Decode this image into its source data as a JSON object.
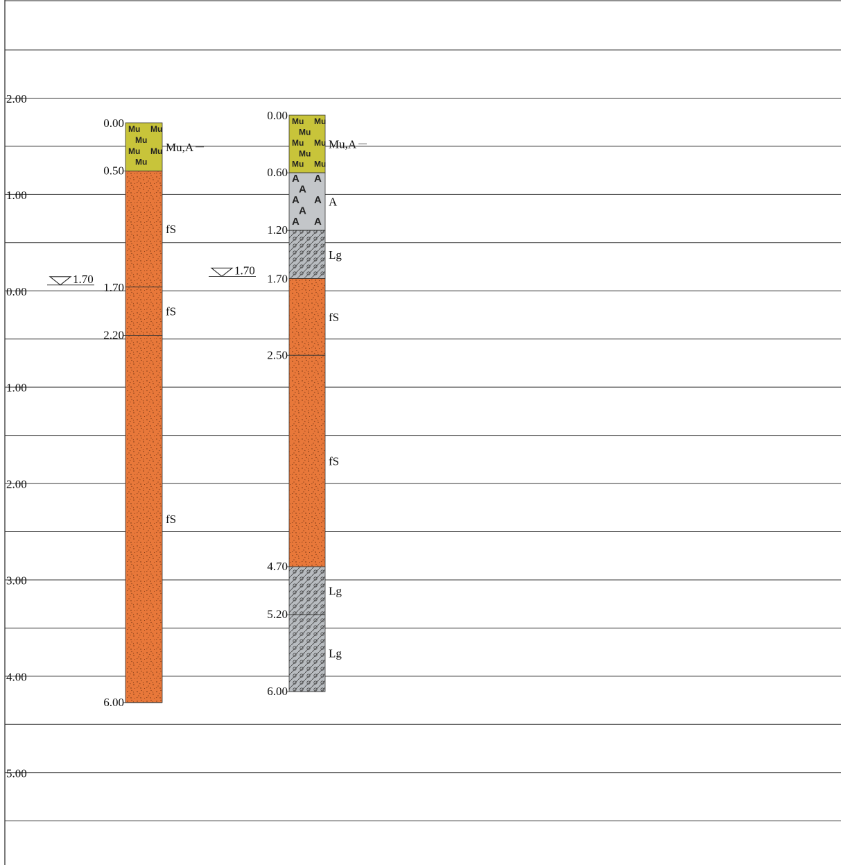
{
  "colors": {
    "line": "#333333",
    "frame": "#222222",
    "Mu": "#c8c43a",
    "fS": "#e8783a",
    "A": "#c3c6c9",
    "Lg": "#b8bcc0"
  },
  "elevation_scale": {
    "labels": [
      "2.00",
      "1.00",
      "0.00",
      "1.00",
      "2.00",
      "3.00",
      "4.00",
      "5.00"
    ]
  },
  "boreholes": [
    {
      "water_level": "1.70",
      "water_depth_label": "1.70",
      "top_label": "0.00",
      "bottom_label": "6.00",
      "layers": [
        {
          "top": 0.0,
          "bottom": 0.5,
          "soil": "Mu",
          "label": "Mu,A",
          "top_label": "0.00",
          "bottom_label": "0.50"
        },
        {
          "top": 0.5,
          "bottom": 1.7,
          "soil": "fS",
          "label": "fS"
        },
        {
          "top": 1.7,
          "bottom": 2.2,
          "soil": "fS",
          "label": "fS",
          "bottom_label": "2.20"
        },
        {
          "top": 2.2,
          "bottom": 6.0,
          "soil": "fS",
          "label": "fS",
          "bottom_label": "6.00"
        }
      ]
    },
    {
      "water_level": "1.70",
      "water_depth_label": "1.70",
      "top_label": "0.00",
      "bottom_label": "6.00",
      "layers": [
        {
          "top": 0.0,
          "bottom": 0.6,
          "soil": "Mu",
          "label": "Mu,A",
          "top_label": "0.00",
          "bottom_label": "0.60"
        },
        {
          "top": 0.6,
          "bottom": 1.2,
          "soil": "A",
          "label": "A",
          "bottom_label": "1.20"
        },
        {
          "top": 1.2,
          "bottom": 1.7,
          "soil": "Lg",
          "label": "Lg"
        },
        {
          "top": 1.7,
          "bottom": 2.5,
          "soil": "fS",
          "label": "fS",
          "bottom_label": "2.50"
        },
        {
          "top": 2.5,
          "bottom": 4.7,
          "soil": "fS",
          "label": "fS",
          "bottom_label": "4.70"
        },
        {
          "top": 4.7,
          "bottom": 5.2,
          "soil": "Lg",
          "label": "Lg",
          "bottom_label": "5.20"
        },
        {
          "top": 5.2,
          "bottom": 6.0,
          "soil": "Lg",
          "label": "Lg",
          "bottom_label": "6.00"
        }
      ]
    }
  ],
  "soil_symbols": {
    "Mu": "Mu",
    "A": "A"
  }
}
